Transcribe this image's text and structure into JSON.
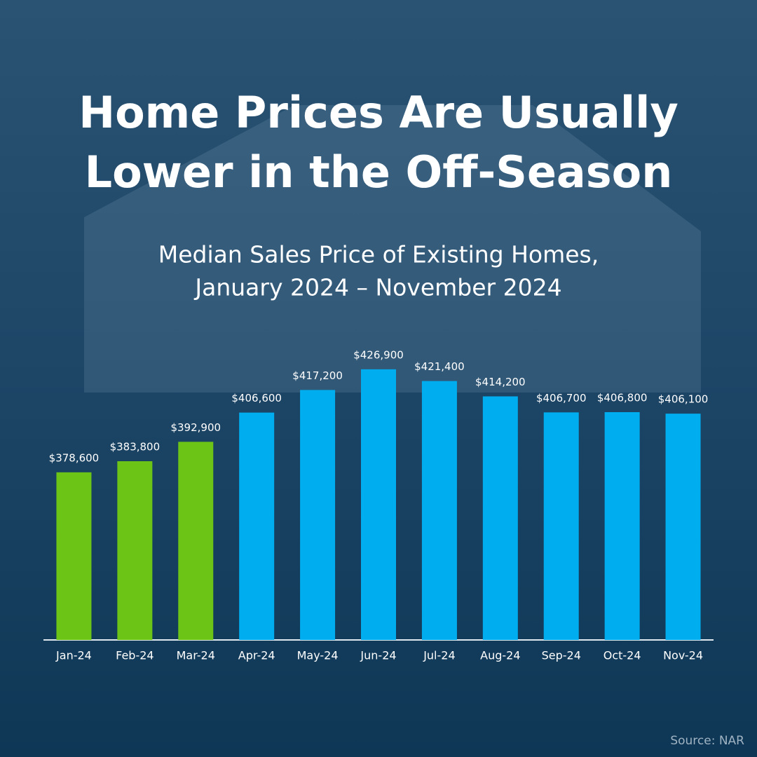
{
  "chart_data": {
    "type": "bar",
    "title": [
      "Home Prices Are Usually",
      "Lower in the Off-Season"
    ],
    "subtitle": [
      "Median Sales Price of Existing Homes,",
      "January 2024 – November 2024"
    ],
    "categories": [
      "Jan-24",
      "Feb-24",
      "Mar-24",
      "Apr-24",
      "May-24",
      "Jun-24",
      "Jul-24",
      "Aug-24",
      "Sep-24",
      "Oct-24",
      "Nov-24"
    ],
    "values": [
      378600,
      383800,
      392900,
      406600,
      417200,
      426900,
      421400,
      414200,
      406700,
      406800,
      406100
    ],
    "value_labels": [
      "$378,600",
      "$383,800",
      "$392,900",
      "$406,600",
      "$417,200",
      "$426,900",
      "$421,400",
      "$414,200",
      "$406,700",
      "$406,800",
      "$406,100"
    ],
    "colors": [
      "#6cc417",
      "#6cc417",
      "#6cc417",
      "#00aeef",
      "#00aeef",
      "#00aeef",
      "#00aeef",
      "#00aeef",
      "#00aeef",
      "#00aeef",
      "#00aeef"
    ],
    "ylim": [
      300000,
      440000
    ],
    "source": "Source: NAR"
  }
}
